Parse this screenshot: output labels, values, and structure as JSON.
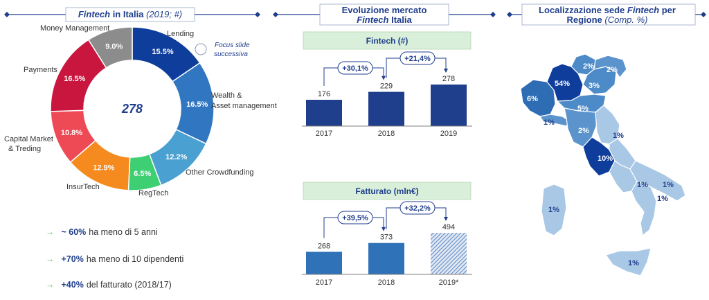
{
  "headers": {
    "left": {
      "bold_italic": "Fintech",
      "rest": " in Italia ",
      "paren": "(2019; #)"
    },
    "middle": {
      "line1": "Evoluzione mercato",
      "line2_italic": "Fintech",
      "line2_rest": " Italia"
    },
    "right": {
      "line1_a": "Localizzazione sede ",
      "line1_italic": "Fintech",
      "line1_b": " per",
      "line2": "Regione ",
      "line2_paren": "(Comp. %)"
    }
  },
  "focus_note": {
    "line1": "Focus slide",
    "line2": "successiva"
  },
  "bullets": [
    {
      "highlight": "~ 60%",
      "text": "ha meno di 5 anni"
    },
    {
      "highlight": "+70%",
      "text": "ha meno di 10 dipendenti"
    },
    {
      "highlight": "+40%",
      "text": "del fatturato (2018/17)"
    }
  ],
  "chart_data": [
    {
      "type": "pie",
      "center_value": "278",
      "slices": [
        {
          "label": "Lending",
          "value": 15.5,
          "value_label": "15.5%",
          "color": "#0f3d9c"
        },
        {
          "label": "Wealth & Asset management",
          "value": 16.5,
          "value_label": "16.5%",
          "color": "#3176c1"
        },
        {
          "label": "Other Crowdfunding",
          "value": 12.2,
          "value_label": "12.2%",
          "color": "#4aa0d0"
        },
        {
          "label": "RegTech",
          "value": 6.5,
          "value_label": "6.5%",
          "color": "#3ecf73"
        },
        {
          "label": "InsurTech",
          "value": 12.9,
          "value_label": "12.9%",
          "color": "#f58a1f"
        },
        {
          "label": "Capital Market & Treding",
          "value": 10.8,
          "value_label": "10.8%",
          "color": "#ee4a56"
        },
        {
          "label": "Payments",
          "value": 16.5,
          "value_label": "16.5%",
          "color": "#c8163e"
        },
        {
          "label": "Money Management",
          "value": 9.0,
          "value_label": "9.0%",
          "color": "#8c8c8c"
        }
      ]
    },
    {
      "type": "bar",
      "title": "Fintech (#)",
      "categories": [
        "2017",
        "2018",
        "2019"
      ],
      "values": [
        176,
        229,
        278
      ],
      "value_labels": [
        "176",
        "229",
        "278"
      ],
      "colors": [
        "#1f3e8c",
        "#1f3e8c",
        "#1f3e8c"
      ],
      "growth": [
        "+30,1%",
        "+21,4%"
      ]
    },
    {
      "type": "bar",
      "title": "Fatturato (mln€)",
      "categories": [
        "2017",
        "2018",
        "2019*"
      ],
      "values": [
        268,
        373,
        494
      ],
      "value_labels": [
        "268",
        "373",
        "494"
      ],
      "colors": [
        "#2f72b8",
        "#2f72b8",
        "hatched"
      ],
      "growth": [
        "+39,5%",
        "+32,2%"
      ]
    },
    {
      "type": "map",
      "region_values": [
        "54%",
        "6%",
        "2%",
        "2%",
        "3%",
        "5%",
        "2%",
        "1%",
        "1%",
        "10%",
        "1%",
        "1%",
        "1%",
        "1%",
        "1%"
      ]
    }
  ]
}
